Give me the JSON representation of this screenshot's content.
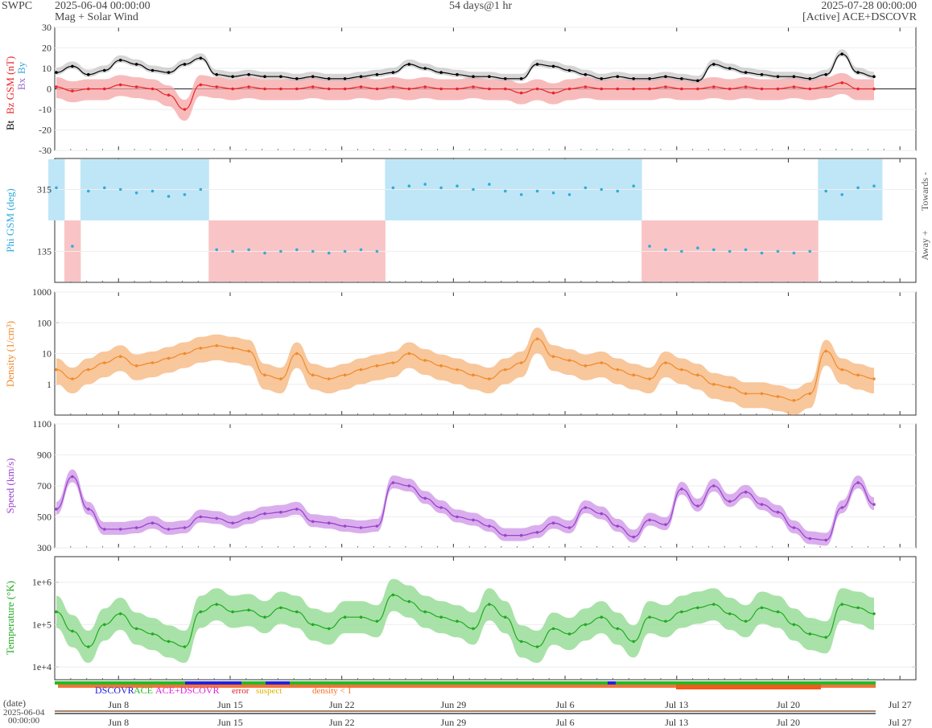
{
  "header": {
    "brand": "SWPC",
    "start": "2025-06-04 00:00:00",
    "subtitle": "Mag + Solar Wind",
    "span": "54 days@1 hr",
    "end": "2025-07-28 00:00:00",
    "source": "[Active] ACE+DSCOVR"
  },
  "colors": {
    "bt": "#000000",
    "bz": "#e8262a",
    "bz_fill": "#f6a4a6",
    "by": "#33aadd",
    "bx": "#9966cc",
    "phi": "#33aadd",
    "towards_fill": "#bfe6f7",
    "away_fill": "#f9c4c6",
    "density": "#f08a2c",
    "density_fill": "#f7bd8a",
    "speed": "#9944cc",
    "speed_fill": "#d3a0ea",
    "temperature": "#22aa22",
    "temp_fill": "#99dd99"
  },
  "x_axis": {
    "date_label": "(date)",
    "start_label": "2025-06-04",
    "start_time": "00:00:00",
    "ticks": [
      "Jun 8",
      "Jun 15",
      "Jun 22",
      "Jun 29",
      "Jul 6",
      "Jul 13",
      "Jul 20",
      "Jul 27"
    ],
    "tick_days": [
      4,
      11,
      18,
      25,
      32,
      39,
      46,
      53
    ],
    "total_days": 54
  },
  "chart_data": [
    {
      "type": "line",
      "panel": "mag",
      "ylabel_parts": [
        "Bt",
        "Bz GSM (nT)",
        "Bx",
        "By"
      ],
      "ylim": [
        -30,
        30
      ],
      "yticks": [
        "30",
        "20",
        "10",
        "0",
        "-10",
        "-20",
        "-30"
      ],
      "ytick_values": [
        30,
        20,
        10,
        0,
        -10,
        -20,
        -30
      ],
      "x": [
        0,
        1,
        2,
        3,
        4,
        5,
        6,
        7,
        8,
        9,
        10,
        11,
        12,
        13,
        14,
        15,
        16,
        17,
        18,
        19,
        20,
        21,
        22,
        23,
        24,
        25,
        26,
        27,
        28,
        29,
        30,
        31,
        32,
        33,
        34,
        35,
        36,
        37,
        38,
        39,
        40,
        41,
        42,
        43,
        44,
        45,
        46,
        47,
        48,
        49,
        50,
        51
      ],
      "series": [
        {
          "name": "Bt",
          "values": [
            8,
            11,
            7,
            9,
            14,
            12,
            9,
            8,
            12,
            15,
            7,
            6,
            7,
            6,
            6,
            5,
            6,
            5,
            5,
            6,
            7,
            8,
            12,
            10,
            8,
            7,
            6,
            6,
            5,
            5,
            12,
            11,
            9,
            7,
            5,
            6,
            5,
            5,
            6,
            5,
            4,
            12,
            10,
            8,
            7,
            6,
            6,
            5,
            7,
            17,
            8,
            6
          ]
        },
        {
          "name": "Bz",
          "values": [
            1,
            -1,
            0,
            0,
            2,
            1,
            0,
            -3,
            -10,
            2,
            1,
            0,
            1,
            0,
            0,
            0,
            1,
            0,
            0,
            1,
            0,
            1,
            0,
            1,
            0,
            0,
            1,
            0,
            0,
            -2,
            0,
            -2,
            0,
            1,
            0,
            0,
            0,
            0,
            1,
            0,
            0,
            1,
            0,
            1,
            0,
            0,
            1,
            0,
            1,
            3,
            0,
            0
          ]
        }
      ]
    },
    {
      "type": "scatter",
      "panel": "phi",
      "ylabel": "Phi GSM (deg)",
      "ylim": [
        45,
        405
      ],
      "yticks": [
        "315",
        "135"
      ],
      "ytick_values": [
        315,
        135
      ],
      "side_labels": [
        "Towards -",
        "Away +"
      ],
      "x": [
        0,
        1,
        2,
        3,
        4,
        5,
        6,
        7,
        8,
        9,
        10,
        11,
        12,
        13,
        14,
        15,
        16,
        17,
        18,
        19,
        20,
        21,
        22,
        23,
        24,
        25,
        26,
        27,
        28,
        29,
        30,
        31,
        32,
        33,
        34,
        35,
        36,
        37,
        38,
        39,
        40,
        41,
        42,
        43,
        44,
        45,
        46,
        47,
        48,
        49,
        50,
        51
      ],
      "values": [
        320,
        150,
        310,
        320,
        315,
        305,
        310,
        295,
        300,
        315,
        140,
        135,
        140,
        130,
        135,
        140,
        135,
        130,
        135,
        140,
        135,
        320,
        325,
        330,
        320,
        325,
        315,
        330,
        310,
        300,
        310,
        305,
        300,
        320,
        315,
        310,
        325,
        150,
        140,
        135,
        145,
        140,
        135,
        140,
        130,
        135,
        130,
        135,
        310,
        300,
        320,
        325
      ]
    },
    {
      "type": "line",
      "panel": "density",
      "ylabel": "Density (1/cm³)",
      "scale": "log",
      "ylim": [
        0.1,
        1000
      ],
      "yticks": [
        "1000",
        "100",
        "10",
        "1"
      ],
      "ytick_values": [
        1000,
        100,
        10,
        1
      ],
      "x": [
        0,
        1,
        2,
        3,
        4,
        5,
        6,
        7,
        8,
        9,
        10,
        11,
        12,
        13,
        14,
        15,
        16,
        17,
        18,
        19,
        20,
        21,
        22,
        23,
        24,
        25,
        26,
        27,
        28,
        29,
        30,
        31,
        32,
        33,
        34,
        35,
        36,
        37,
        38,
        39,
        40,
        41,
        42,
        43,
        44,
        45,
        46,
        47,
        48,
        49,
        50,
        51
      ],
      "values": [
        3,
        1.5,
        3,
        5,
        8,
        4,
        5,
        7,
        10,
        15,
        18,
        15,
        12,
        2,
        1.5,
        10,
        2,
        1.5,
        2,
        3,
        4,
        5,
        10,
        6,
        4,
        3,
        2,
        1.5,
        3,
        5,
        30,
        8,
        6,
        4,
        5,
        3,
        2,
        1.5,
        5,
        3,
        2,
        1,
        0.8,
        0.5,
        0.5,
        0.4,
        0.3,
        0.5,
        12,
        3,
        2,
        1.5
      ]
    },
    {
      "type": "line",
      "panel": "speed",
      "ylabel": "Speed (km/s)",
      "ylim": [
        300,
        1100
      ],
      "yticks": [
        "1100",
        "900",
        "700",
        "500",
        "300"
      ],
      "ytick_values": [
        1100,
        900,
        700,
        500,
        300
      ],
      "x": [
        0,
        1,
        2,
        3,
        4,
        5,
        6,
        7,
        8,
        9,
        10,
        11,
        12,
        13,
        14,
        15,
        16,
        17,
        18,
        19,
        20,
        21,
        22,
        23,
        24,
        25,
        26,
        27,
        28,
        29,
        30,
        31,
        32,
        33,
        34,
        35,
        36,
        37,
        38,
        39,
        40,
        41,
        42,
        43,
        44,
        45,
        46,
        47,
        48,
        49,
        50,
        51
      ],
      "values": [
        550,
        760,
        550,
        420,
        420,
        430,
        460,
        420,
        430,
        500,
        490,
        460,
        490,
        520,
        530,
        550,
        470,
        460,
        440,
        430,
        440,
        720,
        700,
        620,
        560,
        500,
        480,
        440,
        380,
        380,
        400,
        460,
        430,
        560,
        520,
        440,
        370,
        480,
        450,
        680,
        570,
        700,
        600,
        660,
        580,
        530,
        430,
        360,
        350,
        560,
        720,
        580
      ]
    },
    {
      "type": "line",
      "panel": "temperature",
      "ylabel": "Temperature (°K)",
      "scale": "log",
      "ylim": [
        5000,
        4000000
      ],
      "yticks": [
        "1e+6",
        "1e+5",
        "1e+4"
      ],
      "ytick_values": [
        1000000,
        100000,
        10000
      ],
      "x": [
        0,
        1,
        2,
        3,
        4,
        5,
        6,
        7,
        8,
        9,
        10,
        11,
        12,
        13,
        14,
        15,
        16,
        17,
        18,
        19,
        20,
        21,
        22,
        23,
        24,
        25,
        26,
        27,
        28,
        29,
        30,
        31,
        32,
        33,
        34,
        35,
        36,
        37,
        38,
        39,
        40,
        41,
        42,
        43,
        44,
        45,
        46,
        47,
        48,
        49,
        50,
        51
      ],
      "values": [
        200000,
        70000,
        30000,
        100000,
        180000,
        80000,
        60000,
        40000,
        30000,
        200000,
        300000,
        200000,
        220000,
        150000,
        250000,
        200000,
        100000,
        80000,
        150000,
        150000,
        120000,
        500000,
        350000,
        200000,
        150000,
        120000,
        80000,
        300000,
        150000,
        40000,
        30000,
        80000,
        60000,
        100000,
        150000,
        80000,
        40000,
        150000,
        120000,
        200000,
        250000,
        300000,
        180000,
        120000,
        250000,
        200000,
        100000,
        60000,
        50000,
        300000,
        250000,
        180000
      ]
    }
  ],
  "legend": {
    "dscovr": "DSCOVR",
    "ace": "ACE",
    "combined": "ACE+DSCOVR",
    "error": "error",
    "suspect": "suspect",
    "density": "density < 1"
  }
}
